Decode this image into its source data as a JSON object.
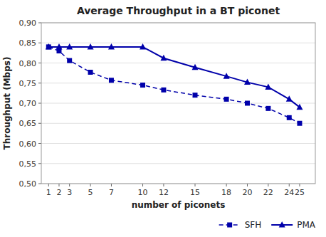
{
  "chart_data": {
    "type": "line",
    "title": "Average Throughput in a BT piconet",
    "x_label": "number of piconets",
    "y_label": "Throughput (Mbps)",
    "x": [
      1,
      2,
      3,
      5,
      7,
      10,
      12,
      15,
      18,
      20,
      22,
      24,
      25
    ],
    "series": [
      {
        "name": "SFH",
        "color": "#0000AA",
        "marker": "square",
        "line_style": "dashed",
        "values": [
          0.84,
          0.83,
          0.806,
          0.777,
          0.757,
          0.745,
          0.733,
          0.72,
          0.71,
          0.7,
          0.687,
          0.664,
          0.65
        ]
      },
      {
        "name": "PMA",
        "color": "#0000AA",
        "marker": "triangle",
        "line_style": "solid",
        "values": [
          0.84,
          0.84,
          0.84,
          0.84,
          0.84,
          0.84,
          0.812,
          0.789,
          0.767,
          0.752,
          0.74,
          0.71,
          0.69
        ]
      }
    ],
    "xlim": [
      0.3,
      26.5
    ],
    "xticks": [
      1,
      2,
      3,
      5,
      7,
      10,
      12,
      15,
      18,
      20,
      22,
      24,
      25
    ],
    "ylim": [
      0.5,
      0.9
    ],
    "yticks": [
      {
        "value": 0.5,
        "label": "0,50"
      },
      {
        "value": 0.55,
        "label": "0,55"
      },
      {
        "value": 0.6,
        "label": "0,60"
      },
      {
        "value": 0.65,
        "label": "0,65"
      },
      {
        "value": 0.7,
        "label": "0,70"
      },
      {
        "value": 0.75,
        "label": "0,75"
      },
      {
        "value": 0.8,
        "label": "0,80"
      },
      {
        "value": 0.85,
        "label": "0,85"
      },
      {
        "value": 0.9,
        "label": "0,90"
      }
    ],
    "grid": true,
    "legend": "lower right"
  }
}
